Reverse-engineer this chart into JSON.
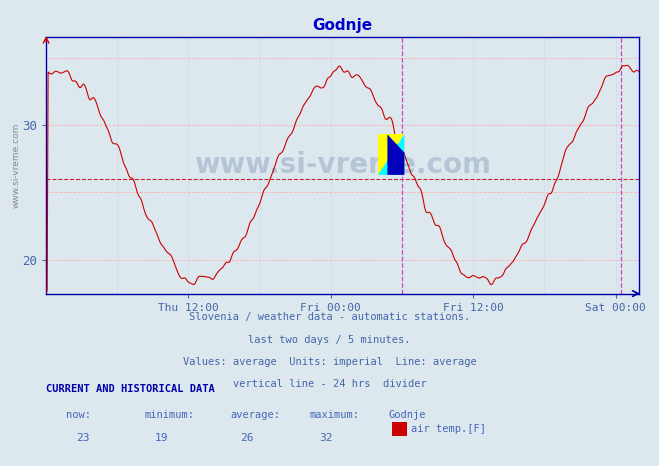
{
  "title": "Godnje",
  "title_color": "#0000cc",
  "background_color": "#dde8ee",
  "plot_bg_color": "#dde8ee",
  "line_color": "#cc0000",
  "grid_color_h": "#ffb0b0",
  "grid_color_v": "#c8d8e8",
  "axis_color": "#4466aa",
  "xticklabels": [
    "Thu 12:00",
    "Fri 00:00",
    "Fri 12:00",
    "Sat 00:00"
  ],
  "xtick_hours": [
    12,
    24,
    36,
    48
  ],
  "yticks": [
    20,
    30
  ],
  "ymin": 17.5,
  "ymax": 36.5,
  "xmin": 0,
  "xmax": 50,
  "avg_value": 26,
  "vline_x": 30,
  "vline2_x": 48.5,
  "footer_lines": [
    "Slovenia / weather data - automatic stations.",
    "last two days / 5 minutes.",
    "Values: average  Units: imperial  Line: average",
    "vertical line - 24 hrs  divider"
  ],
  "footer_color": "#4466aa",
  "current_label": "CURRENT AND HISTORICAL DATA",
  "current_label_color": "#0000aa",
  "stats_labels": [
    "now:",
    "minimum:",
    "average:",
    "maximum:",
    "Godnje"
  ],
  "stats_values": [
    "23",
    "19",
    "26",
    "32"
  ],
  "stats_color": "#4466bb",
  "legend_color": "#cc0000",
  "legend_label": "air temp.[F]",
  "vline_color": "#cc44cc",
  "hline_color": "#cc0000",
  "border_color": "#0000aa",
  "watermark_color": "#0a2a6e",
  "watermark_alpha": 0.18,
  "ylabel_text": "www.si-vreme.com",
  "ylabel_color": "#888899"
}
